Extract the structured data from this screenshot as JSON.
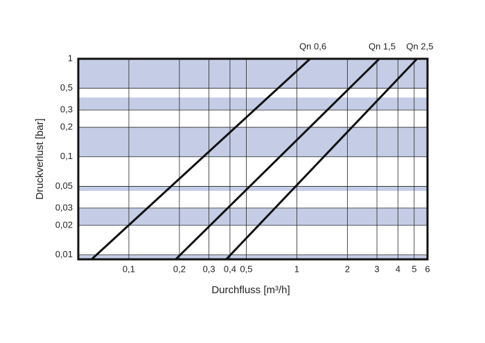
{
  "chart_data": {
    "type": "line",
    "xlabel": "Durchfluss [m³/h]",
    "ylabel": "Druckverlust [bar]",
    "log_x": true,
    "log_y": true,
    "grid": true,
    "xlim": [
      0.05,
      6
    ],
    "ylim": [
      0.009,
      1
    ],
    "xticks": [
      {
        "value": 0.1,
        "label": "0,1"
      },
      {
        "value": 0.2,
        "label": "0,2"
      },
      {
        "value": 0.3,
        "label": "0,3"
      },
      {
        "value": 0.4,
        "label": "0,4"
      },
      {
        "value": 0.5,
        "label": "0,5"
      },
      1,
      2,
      3,
      4,
      5,
      6
    ],
    "yticks": [
      1,
      {
        "value": 0.5,
        "label": "0,5"
      },
      {
        "value": 0.3,
        "label": "0,3"
      },
      {
        "value": 0.2,
        "label": "0,2"
      },
      {
        "value": 0.1,
        "label": "0,1"
      },
      {
        "value": 0.05,
        "label": "0,05"
      },
      {
        "value": 0.03,
        "label": "0,03"
      },
      {
        "value": 0.02,
        "label": "0,02"
      },
      {
        "value": 0.01,
        "label": "0,01"
      }
    ],
    "series": [
      {
        "name": "Qn 0,6",
        "color": "#111111",
        "x": [
          0.06,
          1.2
        ],
        "values": [
          0.009,
          1
        ]
      },
      {
        "name": "Qn 1,5",
        "color": "#111111",
        "x": [
          0.19,
          3.1
        ],
        "values": [
          0.009,
          1
        ]
      },
      {
        "name": "Qn 2,5",
        "color": "#111111",
        "x": [
          0.38,
          5.2
        ],
        "values": [
          0.009,
          1
        ]
      }
    ]
  }
}
